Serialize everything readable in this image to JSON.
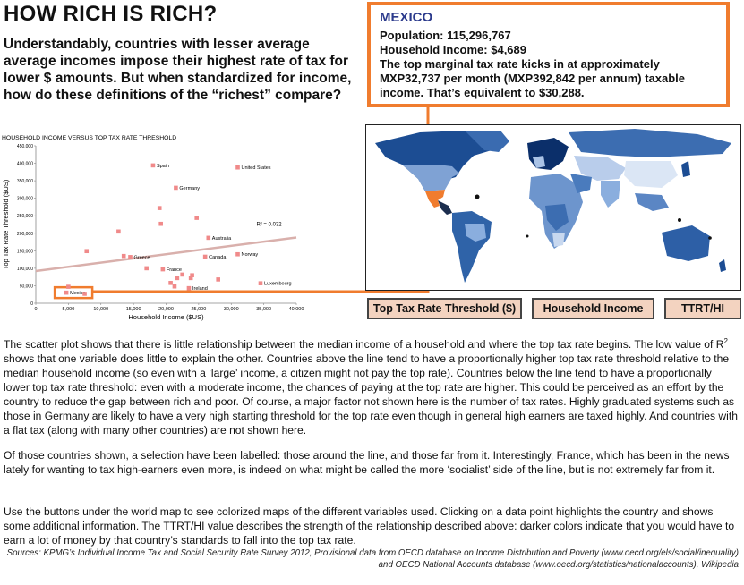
{
  "title": "HOW RICH IS RICH?",
  "subtitle": "Understandably, countries with lesser average average incomes impose their highest rate of tax for lower $ amounts. But when standardized for income, how do these definitions of the “richest” compare?",
  "info": {
    "country": "MEXICO",
    "population": "Population: 115,296,767",
    "household_income": "Household Income: $4,689",
    "description": "The top marginal tax rate kicks in at approximately MXP32,737 per month (MXP392,842 per annum) taxable income. That’s equivalent to $30,288."
  },
  "colors": {
    "accent": "#f07c2e",
    "point": "#f08a8a",
    "trendline": "#d9b0ac",
    "button_bg": "#f3d3c0",
    "map_dark": "#0b2f6a",
    "map_light": "#dbe6f5"
  },
  "chart_data": {
    "type": "scatter",
    "title": "HOUSEHOLD INCOME VERSUS TOP TAX RATE THRESHOLD",
    "xlabel": "Household Income ($US)",
    "ylabel": "Top Tax Rate Threshold ($US)",
    "xlim": [
      0,
      40000
    ],
    "ylim": [
      0,
      450000
    ],
    "xticks": [
      "0",
      "5,000",
      "10,000",
      "15,000",
      "20,000",
      "25,000",
      "30,000",
      "35,000",
      "40,000"
    ],
    "yticks": [
      "0",
      "50,000",
      "100,000",
      "150,000",
      "200,000",
      "250,000",
      "300,000",
      "350,000",
      "400,000",
      "450,000"
    ],
    "r2_label": "R² = 0.032",
    "trendline": {
      "x": [
        0,
        40000
      ],
      "y": [
        92000,
        188000
      ]
    },
    "highlight": "Mexico",
    "points": [
      {
        "x": 4689,
        "y": 30288,
        "label": "Mexico"
      },
      {
        "x": 18000,
        "y": 394000,
        "label": "Spain"
      },
      {
        "x": 31000,
        "y": 388000,
        "label": "United States"
      },
      {
        "x": 21500,
        "y": 330000,
        "label": "Germany"
      },
      {
        "x": 26500,
        "y": 187000,
        "label": "Australia"
      },
      {
        "x": 26000,
        "y": 133000,
        "label": "Canada"
      },
      {
        "x": 31000,
        "y": 140000,
        "label": "Norway"
      },
      {
        "x": 14500,
        "y": 132000,
        "label": "Greece"
      },
      {
        "x": 19500,
        "y": 97000,
        "label": "France"
      },
      {
        "x": 34500,
        "y": 57000,
        "label": "Luxembourg"
      },
      {
        "x": 23500,
        "y": 43000,
        "label": "Ireland"
      },
      {
        "x": 12700,
        "y": 205000,
        "label": ""
      },
      {
        "x": 7800,
        "y": 149000,
        "label": ""
      },
      {
        "x": 19000,
        "y": 272000,
        "label": ""
      },
      {
        "x": 19200,
        "y": 227000,
        "label": ""
      },
      {
        "x": 24700,
        "y": 244000,
        "label": ""
      },
      {
        "x": 13500,
        "y": 135000,
        "label": ""
      },
      {
        "x": 17000,
        "y": 100000,
        "label": ""
      },
      {
        "x": 22500,
        "y": 82000,
        "label": ""
      },
      {
        "x": 21700,
        "y": 72000,
        "label": ""
      },
      {
        "x": 24000,
        "y": 80000,
        "label": ""
      },
      {
        "x": 23800,
        "y": 72000,
        "label": ""
      },
      {
        "x": 28000,
        "y": 68000,
        "label": ""
      },
      {
        "x": 20700,
        "y": 58000,
        "label": ""
      },
      {
        "x": 21300,
        "y": 48000,
        "label": ""
      },
      {
        "x": 5000,
        "y": 47000,
        "label": ""
      },
      {
        "x": 7500,
        "y": 27000,
        "label": ""
      }
    ]
  },
  "buttons": {
    "top_tax": "Top Tax Rate Threshold ($)",
    "household": "Household Income",
    "ttrt": "TTRT/HI"
  },
  "paragraphs": {
    "p1_a": "The scatter plot shows that there is little relationship between the median income of a household and where the top tax rate begins. The low value of R",
    "p1_sup": "2",
    "p1_b": " shows that one variable does little to explain the other. Countries above the line tend to have a proportionally higher top tax rate threshold relative to the median household income (so even with a ‘large’ income, a citizen might not pay the top rate). Countries below the line tend to have a proportionally lower top tax rate threshold: even with a moderate income, the chances of paying at the top rate are higher. This could be perceived as an effort by the country to reduce the gap between rich and poor. Of course, a major factor not shown here is the number of tax rates. Highly graduated systems such as those in Germany are likely to have a very high starting threshold for the top rate even though in general high earners are taxed highly. And countries with a flat tax (along with many other countries) are not shown here.",
    "p2": "Of those countries shown, a selection have been labelled: those around the line, and those far from it. Interestingly, France, which has been in the news lately for wanting to tax high-earners even more, is indeed on what might be called the more ‘socialist’ side of the line, but is not extremely far from it.",
    "p3": "Use the buttons under the world map to see colorized maps of the different variables used. Clicking on a data point highlights the country and shows some additional information. The TTRT/HI value describes the strength of the relationship described above: darker colors indicate that you would have to earn a lot of money by that country’s standards to fall into the top tax rate."
  },
  "sources": "Sources: KPMG’s Individual Income Tax and Social Security Rate Survey 2012, Provisional data from OECD database on Income Distribution and Poverty (www.oecd.org/els/social/inequality) and OECD National Accounts database (www.oecd.org/statistics/nationalaccounts), Wikipedia"
}
